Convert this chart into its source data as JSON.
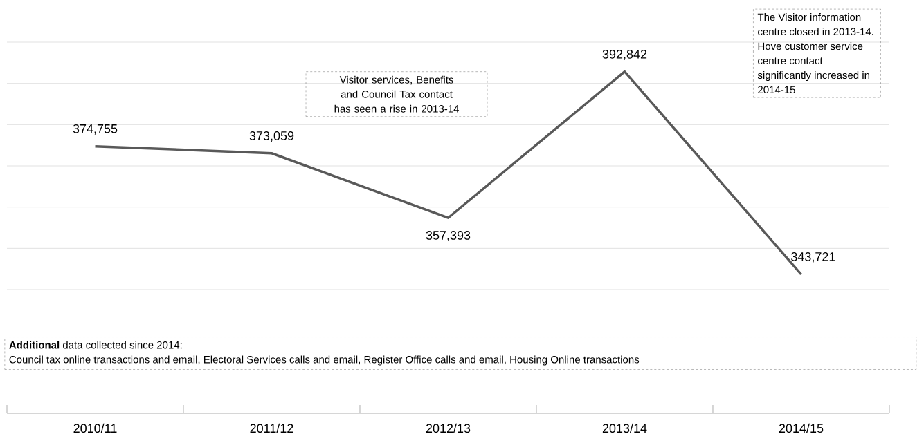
{
  "chart_data": {
    "type": "line",
    "categories": [
      "2010/11",
      "2011/12",
      "2012/13",
      "2013/14",
      "2014/15"
    ],
    "values": [
      374755,
      373059,
      357393,
      392842,
      343721
    ],
    "color": "#595959",
    "value_labels": [
      "374,755",
      "373,059",
      "357,393",
      "392,842",
      "343,721"
    ],
    "ylim": [
      310000,
      400000
    ],
    "yticks": [
      {
        "value": 340000,
        "label": null
      },
      {
        "value": 350000,
        "label": null
      },
      {
        "value": 360000,
        "label": null
      },
      {
        "value": 370000,
        "label": null
      },
      {
        "value": 380000,
        "label": null
      },
      {
        "value": 390000,
        "label": null
      },
      {
        "value": 400000,
        "label": null
      }
    ],
    "grid": "y",
    "annotations": [
      "Visitor services, Benefits and Council Tax contact has seen a rise in 2013-14",
      "The Visitor information centre closed in 2013-14. Hove customer service centre contact significantly increased in 2014-15",
      "**Additional** data collected since 2014:",
      "Council tax online transactions and email, Electoral Services calls and email, Register Office calls and email, Housing Online transactions"
    ]
  }
}
